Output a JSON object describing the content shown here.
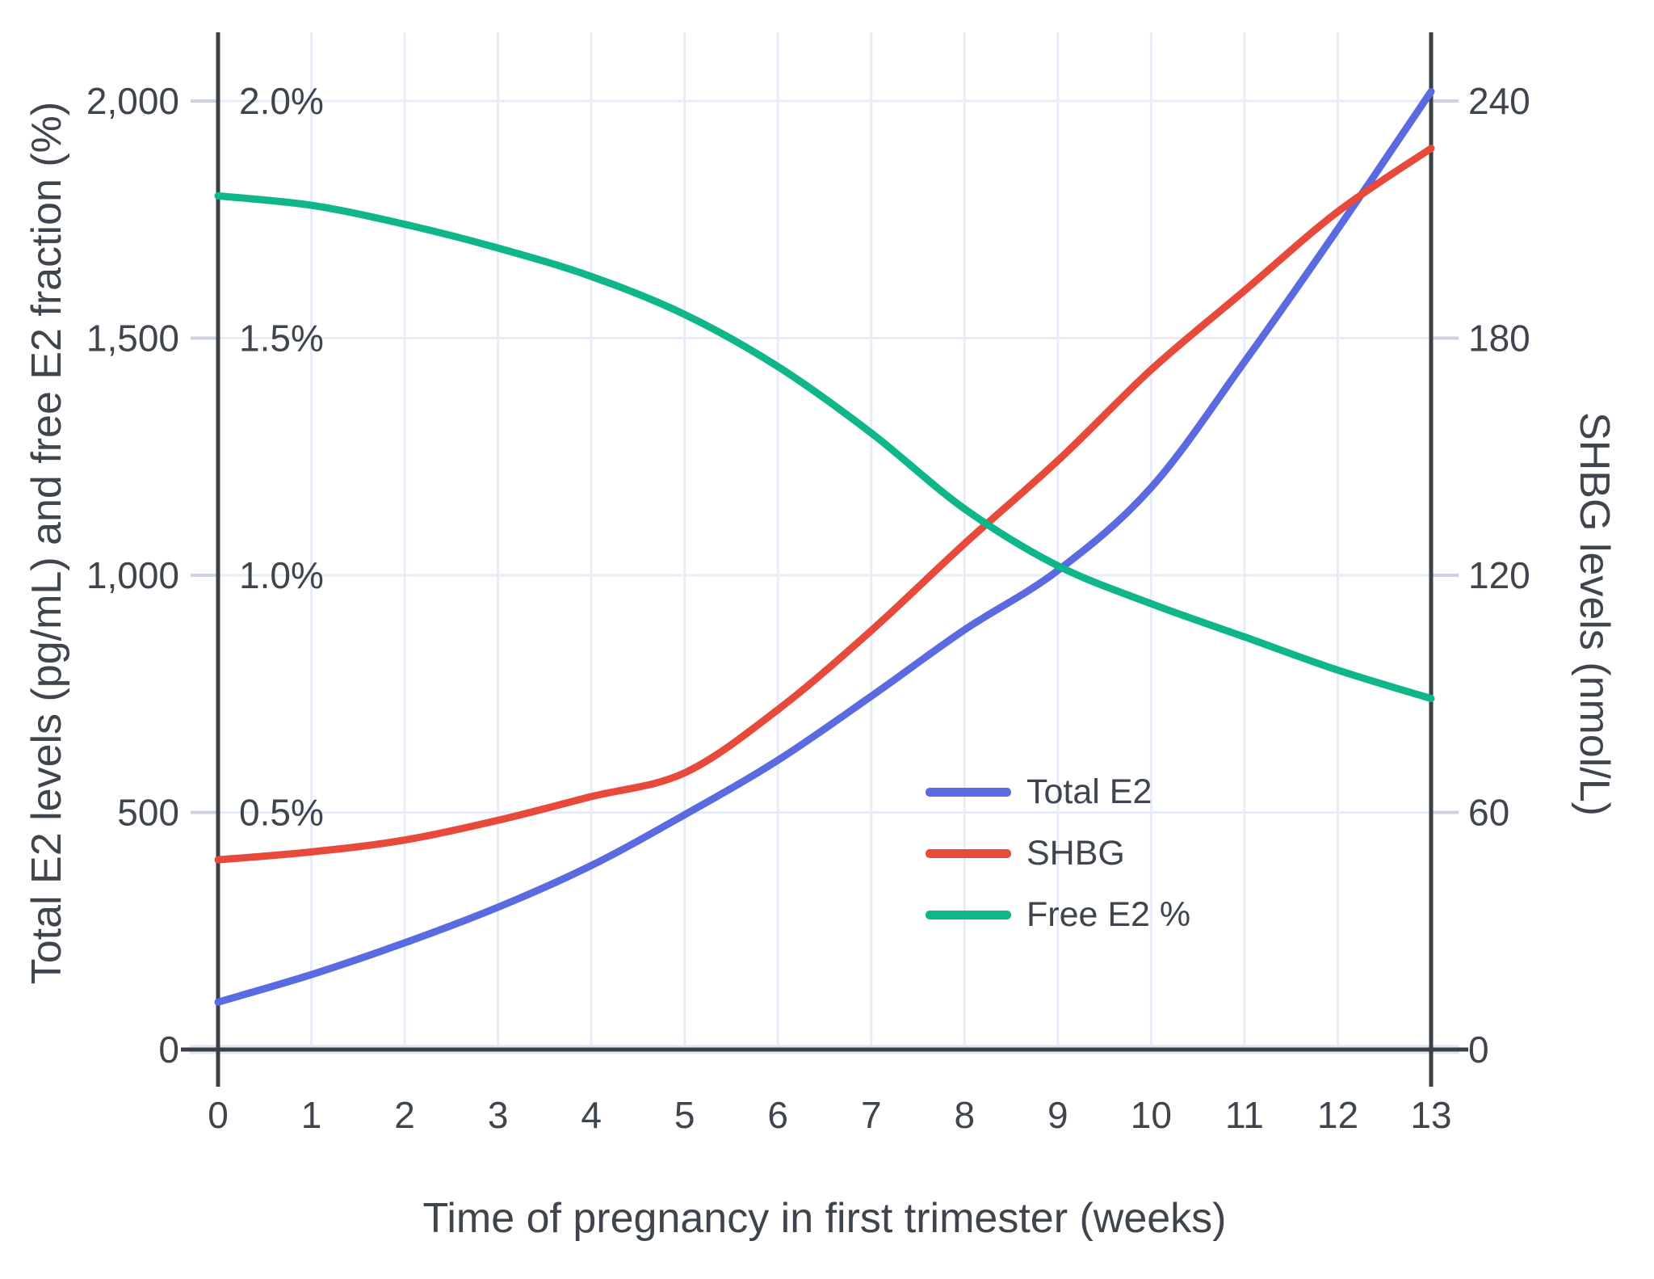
{
  "figure": {
    "background": "#ffffff",
    "colors": {
      "grid": "#e8ecf8",
      "axis_line": "#3b4046",
      "tick_stub": "#ccd2de",
      "zeroline_halo": "#dfe6f4",
      "text": "#3f454d"
    }
  },
  "chart_data": {
    "type": "line",
    "title": "",
    "xlabel": "Time of pregnancy in first trimester (weeks)",
    "ylabel_left": "Total E2 levels (pg/mL) and free E2 fraction (%)",
    "ylabel_right": "SHBG levels (nmol/L)",
    "x": [
      0,
      1,
      2,
      3,
      4,
      5,
      6,
      7,
      8,
      9,
      10,
      11,
      12,
      13
    ],
    "x_range": [
      0,
      13
    ],
    "y_left_range": [
      0,
      2145
    ],
    "y_right_range": [
      0,
      257
    ],
    "grid": true,
    "legend_position": "inside-middle-right",
    "axes_ticks": {
      "x_labels": [
        "0",
        "1",
        "2",
        "3",
        "4",
        "5",
        "6",
        "7",
        "8",
        "9",
        "10",
        "11",
        "12",
        "13"
      ],
      "x_values": [
        0,
        1,
        2,
        3,
        4,
        5,
        6,
        7,
        8,
        9,
        10,
        11,
        12,
        13
      ],
      "y_left_labels": [
        "0",
        "500",
        "1,000",
        "1,500",
        "2,000"
      ],
      "y_left_values": [
        0,
        500,
        1000,
        1500,
        2000
      ],
      "y_left_percent_labels": [
        "0.5%",
        "1.0%",
        "1.5%",
        "2.0%"
      ],
      "y_left_percent_values": [
        0.5,
        1.0,
        1.5,
        2.0
      ],
      "y_right_labels": [
        "0",
        "60",
        "120",
        "180",
        "240"
      ],
      "y_right_values": [
        0,
        60,
        120,
        180,
        240
      ]
    },
    "series": [
      {
        "name": "Total E2",
        "axis": "left",
        "units": "pg/mL",
        "color": "#5a6ae0",
        "values": [
          100,
          158,
          225,
          300,
          388,
          495,
          610,
          745,
          885,
          1010,
          1185,
          1450,
          1730,
          2020
        ]
      },
      {
        "name": "SHBG",
        "axis": "right",
        "units": "nmol/L",
        "color": "#e7493a",
        "values": [
          48,
          50,
          53,
          58,
          64,
          70,
          86,
          106,
          128,
          149,
          172,
          192,
          212,
          228
        ]
      },
      {
        "name": "Free E2 %",
        "axis": "left-percent",
        "units": "%",
        "values_note": "plotted on left axis where 1% = 1000",
        "color": "#0fb68a",
        "values": [
          1.8,
          1.78,
          1.74,
          1.69,
          1.63,
          1.55,
          1.44,
          1.3,
          1.14,
          1.02,
          0.94,
          0.87,
          0.8,
          0.74
        ]
      }
    ]
  }
}
